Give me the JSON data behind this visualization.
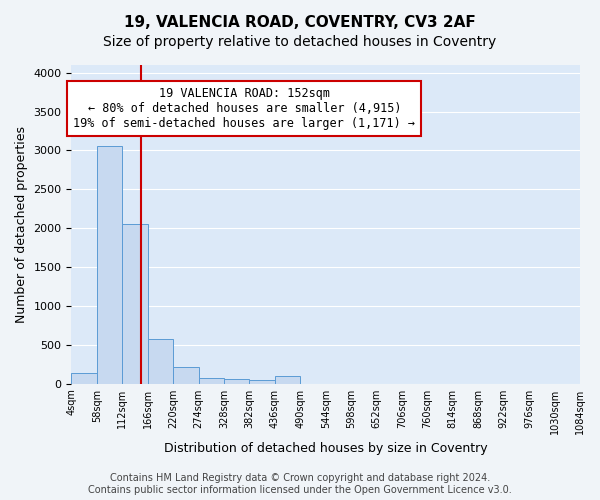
{
  "title1": "19, VALENCIA ROAD, COVENTRY, CV3 2AF",
  "title2": "Size of property relative to detached houses in Coventry",
  "xlabel": "Distribution of detached houses by size in Coventry",
  "ylabel": "Number of detached properties",
  "bin_labels": [
    "4sqm",
    "58sqm",
    "112sqm",
    "166sqm",
    "220sqm",
    "274sqm",
    "328sqm",
    "382sqm",
    "436sqm",
    "490sqm",
    "544sqm",
    "598sqm",
    "652sqm",
    "706sqm",
    "760sqm",
    "814sqm",
    "868sqm",
    "922sqm",
    "976sqm",
    "1030sqm",
    "1084sqm"
  ],
  "bar_values": [
    140,
    3060,
    2060,
    570,
    215,
    75,
    55,
    50,
    95,
    0,
    0,
    0,
    0,
    0,
    0,
    0,
    0,
    0,
    0,
    0
  ],
  "bar_color": "#c7d9f0",
  "bar_edge_color": "#5b9bd5",
  "annotation_text": "19 VALENCIA ROAD: 152sqm\n← 80% of detached houses are smaller (4,915)\n19% of semi-detached houses are larger (1,171) →",
  "annotation_box_color": "#ffffff",
  "annotation_box_edge": "#cc0000",
  "ylim": [
    0,
    4100
  ],
  "yticks": [
    0,
    500,
    1000,
    1500,
    2000,
    2500,
    3000,
    3500,
    4000
  ],
  "bg_color": "#dce9f8",
  "grid_color": "#ffffff",
  "footer": "Contains HM Land Registry data © Crown copyright and database right 2024.\nContains public sector information licensed under the Open Government Licence v3.0.",
  "title1_fontsize": 11,
  "title2_fontsize": 10,
  "annot_fontsize": 8.5,
  "xlabel_fontsize": 9,
  "ylabel_fontsize": 9,
  "footer_fontsize": 7
}
